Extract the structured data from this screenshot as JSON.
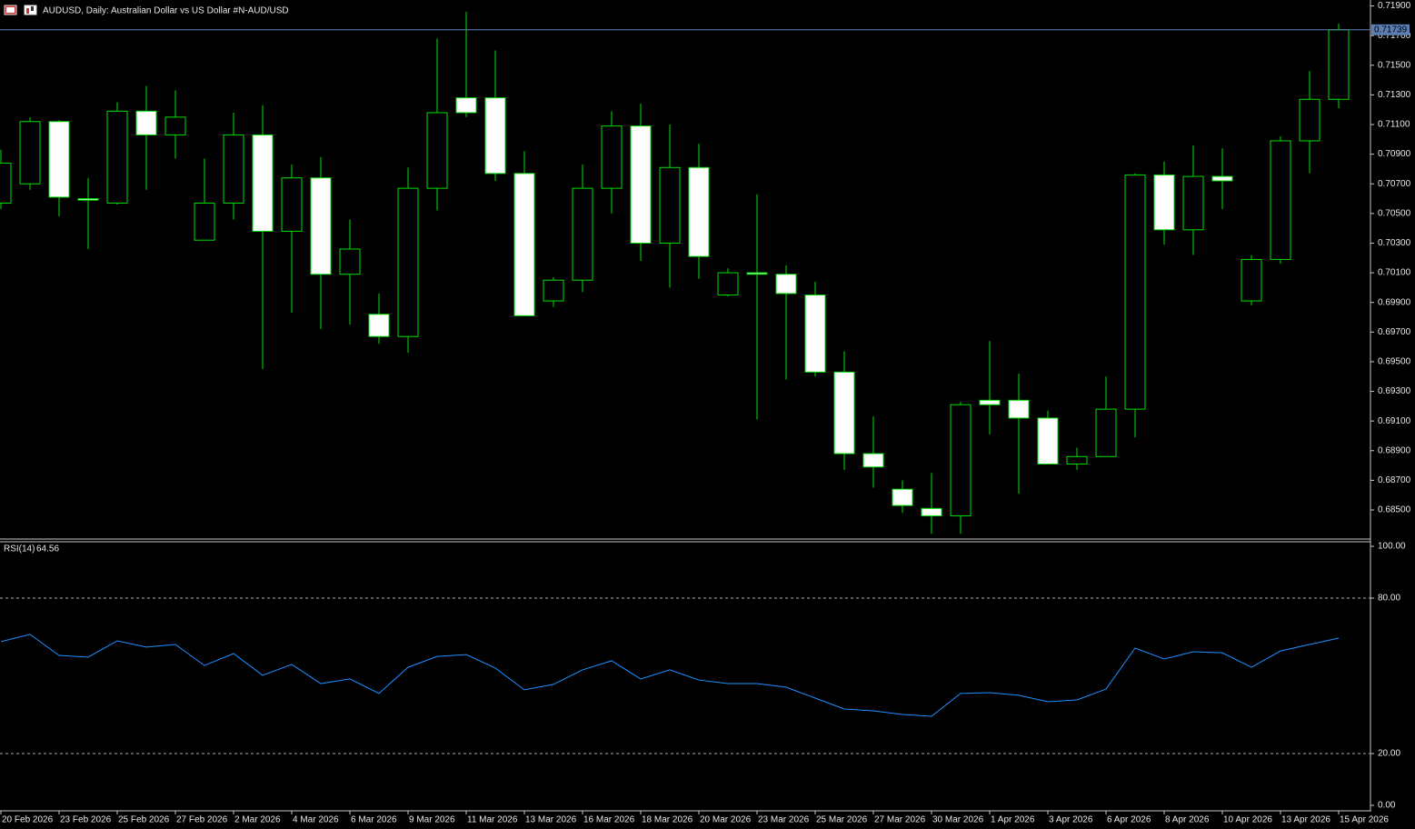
{
  "chart_data": [
    {
      "type": "candlestick",
      "title": "AUDUSD, Daily:  Australian Dollar vs US Dollar #N-AUD/USD",
      "categories": [
        "20 Feb 2026",
        null,
        "23 Feb 2026",
        null,
        "25 Feb 2026",
        null,
        "27 Feb 2026",
        null,
        "2 Mar 2026",
        null,
        "4 Mar 2026",
        null,
        "6 Mar 2026",
        null,
        "9 Mar 2026",
        null,
        "11 Mar 2026",
        null,
        "13 Mar 2026",
        null,
        "16 Mar 2026",
        null,
        "18 Mar 2026",
        null,
        "20 Mar 2026",
        null,
        "23 Mar 2026",
        null,
        "25 Mar 2026",
        null,
        "27 Mar 2026",
        null,
        "30 Mar 2026",
        null,
        "1 Apr 2026",
        null,
        "3 Apr 2026",
        null,
        "6 Apr 2026",
        null,
        "8 Apr 2026",
        null,
        "10 Apr 2026",
        null,
        "13 Apr 2026",
        null,
        "15 Apr 2026"
      ],
      "open": [
        0.7057,
        0.707,
        0.7112,
        0.706,
        0.7057,
        0.7119,
        0.7103,
        0.7032,
        0.7057,
        0.7103,
        0.7038,
        0.7074,
        0.7009,
        0.6982,
        0.6967,
        0.7067,
        0.7128,
        0.7128,
        0.7077,
        0.6991,
        0.7005,
        0.7067,
        0.7109,
        0.703,
        0.7081,
        0.6995,
        0.701,
        0.7009,
        0.6995,
        0.6943,
        0.6888,
        0.6864,
        0.6851,
        0.6846,
        0.6924,
        0.6924,
        0.6912,
        0.6881,
        0.6886,
        0.6918,
        0.7076,
        0.7039,
        0.7075,
        0.6991,
        0.7019,
        0.7099,
        0.7127
      ],
      "high": [
        0.7093,
        0.7115,
        0.7113,
        0.7074,
        0.7125,
        0.7136,
        0.7133,
        0.7087,
        0.7118,
        0.7123,
        0.7083,
        0.7088,
        0.7046,
        0.6996,
        0.7081,
        0.7168,
        0.7186,
        0.716,
        0.7092,
        0.7007,
        0.7083,
        0.7119,
        0.7124,
        0.711,
        0.7097,
        0.7013,
        0.7063,
        0.7015,
        0.7004,
        0.6957,
        0.6913,
        0.687,
        0.6875,
        0.6923,
        0.6964,
        0.6942,
        0.6917,
        0.6892,
        0.694,
        0.7077,
        0.7085,
        0.7096,
        0.7094,
        0.7022,
        0.7102,
        0.7146,
        0.7178
      ],
      "low": [
        0.7053,
        0.7066,
        0.7048,
        0.7026,
        0.7056,
        0.7066,
        0.7087,
        0.7032,
        0.7046,
        0.6945,
        0.6983,
        0.6972,
        0.6975,
        0.6962,
        0.6956,
        0.7052,
        0.7115,
        0.7072,
        0.6981,
        0.6987,
        0.6997,
        0.705,
        0.7018,
        0.7,
        0.7006,
        0.6994,
        0.6911,
        0.6938,
        0.694,
        0.6877,
        0.6865,
        0.6848,
        0.6834,
        0.6834,
        0.6901,
        0.6861,
        0.6881,
        0.6877,
        0.6886,
        0.6899,
        0.7029,
        0.7022,
        0.7053,
        0.6988,
        0.7016,
        0.7077,
        0.7121
      ],
      "close": [
        0.7084,
        0.7112,
        0.7061,
        0.7059,
        0.7119,
        0.7103,
        0.7115,
        0.7057,
        0.7103,
        0.7038,
        0.7074,
        0.7009,
        0.7026,
        0.6967,
        0.7067,
        0.7118,
        0.7118,
        0.7077,
        0.6981,
        0.7005,
        0.7067,
        0.7109,
        0.703,
        0.7081,
        0.7021,
        0.701,
        0.7009,
        0.6996,
        0.6943,
        0.6888,
        0.6879,
        0.6853,
        0.6846,
        0.6921,
        0.6921,
        0.6912,
        0.6881,
        0.6886,
        0.6918,
        0.7076,
        0.7039,
        0.7075,
        0.7072,
        0.7019,
        0.7099,
        0.7127,
        0.71739
      ],
      "up_color": "#000000",
      "down_color": "#ffffff",
      "wick_color": "#00e000",
      "price_line_color": "#5b7fb5",
      "ylim": [
        0.6831,
        0.7194
      ],
      "yticks": [
        {
          "value": 0.719,
          "label": "0.71900"
        },
        {
          "value": 0.717,
          "label": "0.71700"
        },
        {
          "value": 0.715,
          "label": "0.71500"
        },
        {
          "value": 0.713,
          "label": "0.71300"
        },
        {
          "value": 0.711,
          "label": "0.71100"
        },
        {
          "value": 0.709,
          "label": "0.70900"
        },
        {
          "value": 0.707,
          "label": "0.70700"
        },
        {
          "value": 0.705,
          "label": "0.70500"
        },
        {
          "value": 0.703,
          "label": "0.70300"
        },
        {
          "value": 0.701,
          "label": "0.70100"
        },
        {
          "value": 0.699,
          "label": "0.69900"
        },
        {
          "value": 0.697,
          "label": "0.69700"
        },
        {
          "value": 0.695,
          "label": "0.69500"
        },
        {
          "value": 0.693,
          "label": "0.69300"
        },
        {
          "value": 0.691,
          "label": "0.69100"
        },
        {
          "value": 0.689,
          "label": "0.68900"
        },
        {
          "value": 0.687,
          "label": "0.68700"
        },
        {
          "value": 0.685,
          "label": "0.68500"
        }
      ]
    },
    {
      "type": "line",
      "title": "RSI(14)",
      "color": "#1e90ff",
      "values": [
        63.2,
        66.0,
        57.9,
        57.2,
        63.5,
        61.1,
        62.1,
        54.0,
        58.6,
        50.2,
        54.4,
        47.0,
        48.8,
        43.2,
        53.3,
        57.5,
        58.2,
        53.0,
        44.6,
        46.7,
        52.3,
        55.8,
        48.8,
        52.3,
        48.4,
        47.0,
        47.0,
        45.6,
        41.4,
        37.2,
        36.5,
        35.1,
        34.4,
        43.2,
        43.5,
        42.5,
        40.0,
        40.7,
        44.9,
        60.7,
        56.5,
        59.3,
        58.9,
        53.3,
        59.6,
        62.1,
        64.56
      ],
      "ylim": [
        -1.75,
        101.75
      ],
      "yticks": [
        {
          "value": 100,
          "label": "100.00"
        },
        {
          "value": 80,
          "label": "80.00"
        },
        {
          "value": 20,
          "label": "20.00"
        },
        {
          "value": 0,
          "label": "0.00"
        }
      ],
      "levels": [
        80,
        20
      ]
    }
  ]
}
